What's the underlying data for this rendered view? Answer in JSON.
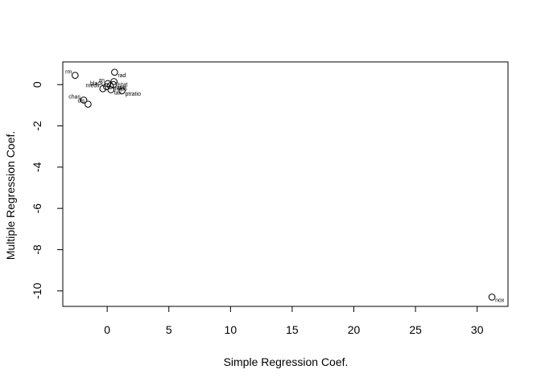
{
  "chart_data": {
    "type": "scatter",
    "title": "",
    "xlabel": "Simple Regression Coef.",
    "ylabel": "Multiple Regression Coef.",
    "xlim": [
      -3.6,
      32.5
    ],
    "ylim": [
      -10.75,
      1.1
    ],
    "xticks": [
      0,
      5,
      10,
      15,
      20,
      25,
      30
    ],
    "yticks": [
      0,
      -2,
      -4,
      -6,
      -8,
      -10
    ],
    "grid": false,
    "legend": "none",
    "points": [
      {
        "label": "rm",
        "x": -2.6,
        "y": 0.45,
        "pos": "left"
      },
      {
        "label": "rad",
        "x": 0.6,
        "y": 0.6,
        "pos": "right"
      },
      {
        "label": "zn",
        "x": 0.05,
        "y": 0.05,
        "pos": "left"
      },
      {
        "label": "lstat",
        "x": 0.55,
        "y": 0.15,
        "pos": "right"
      },
      {
        "label": "age",
        "x": 0.5,
        "y": 0.0,
        "pos": "right"
      },
      {
        "label": "indus",
        "x": 0.25,
        "y": -0.05,
        "pos": "right"
      },
      {
        "label": "black",
        "x": -0.05,
        "y": -0.1,
        "pos": "left"
      },
      {
        "label": "medv",
        "x": -0.35,
        "y": -0.2,
        "pos": "left"
      },
      {
        "label": "tax",
        "x": 0.3,
        "y": -0.25,
        "pos": "right"
      },
      {
        "label": "ptratio",
        "x": 1.2,
        "y": -0.3,
        "pos": "right"
      },
      {
        "label": "chas",
        "x": -1.9,
        "y": -0.75,
        "pos": "left"
      },
      {
        "label": "dis",
        "x": -1.55,
        "y": -0.95,
        "pos": "left"
      },
      {
        "label": "nox",
        "x": 31.2,
        "y": -10.3,
        "pos": "right"
      }
    ]
  }
}
